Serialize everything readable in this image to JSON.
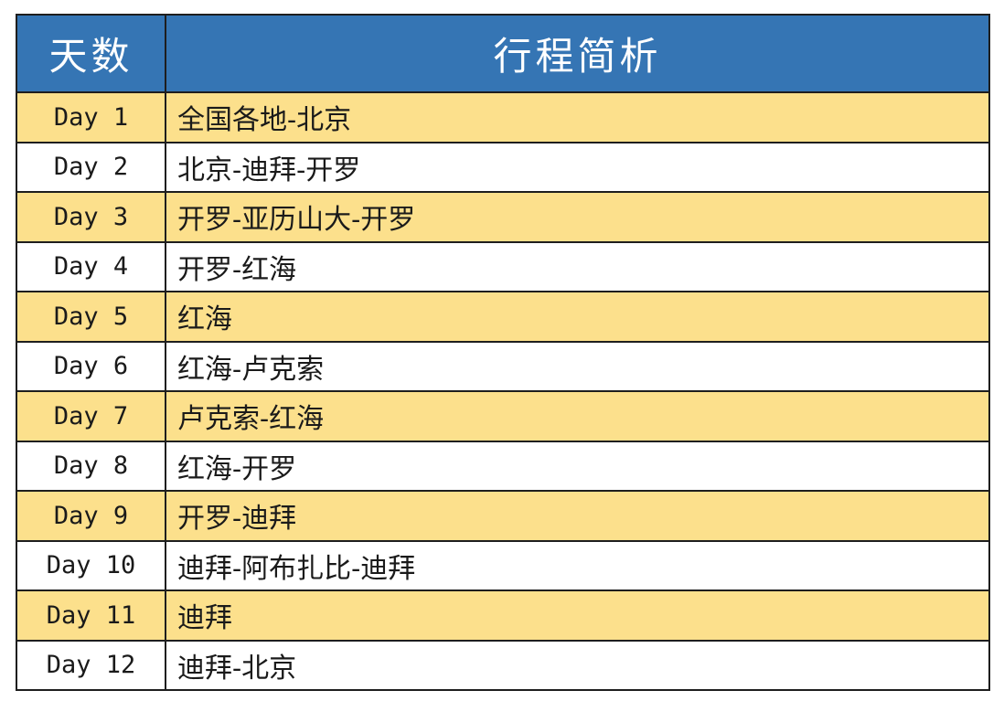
{
  "colors": {
    "header_bg": "#3575b4",
    "header_text": "#ffffff",
    "row_highlight_bg": "#fce08c",
    "row_bg": "#ffffff",
    "border": "#1e1e1e",
    "text": "#1a1a1a"
  },
  "table": {
    "columns": [
      {
        "label": "天数"
      },
      {
        "label": "行程简析"
      }
    ],
    "rows": [
      {
        "day": "Day 1",
        "route": "全国各地-北京",
        "highlighted": true
      },
      {
        "day": "Day 2",
        "route": "北京-迪拜-开罗",
        "highlighted": false
      },
      {
        "day": "Day 3",
        "route": "开罗-亚历山大-开罗",
        "highlighted": true
      },
      {
        "day": "Day 4",
        "route": "开罗-红海",
        "highlighted": false
      },
      {
        "day": "Day 5",
        "route": "红海",
        "highlighted": true
      },
      {
        "day": "Day 6",
        "route": "红海-卢克索",
        "highlighted": false
      },
      {
        "day": "Day 7",
        "route": "卢克索-红海",
        "highlighted": true
      },
      {
        "day": "Day 8",
        "route": "红海-开罗",
        "highlighted": false
      },
      {
        "day": "Day 9",
        "route": "开罗-迪拜",
        "highlighted": true
      },
      {
        "day": "Day 10",
        "route": "迪拜-阿布扎比-迪拜",
        "highlighted": false
      },
      {
        "day": "Day 11",
        "route": "迪拜",
        "highlighted": true
      },
      {
        "day": "Day 12",
        "route": "迪拜-北京",
        "highlighted": false
      }
    ]
  }
}
